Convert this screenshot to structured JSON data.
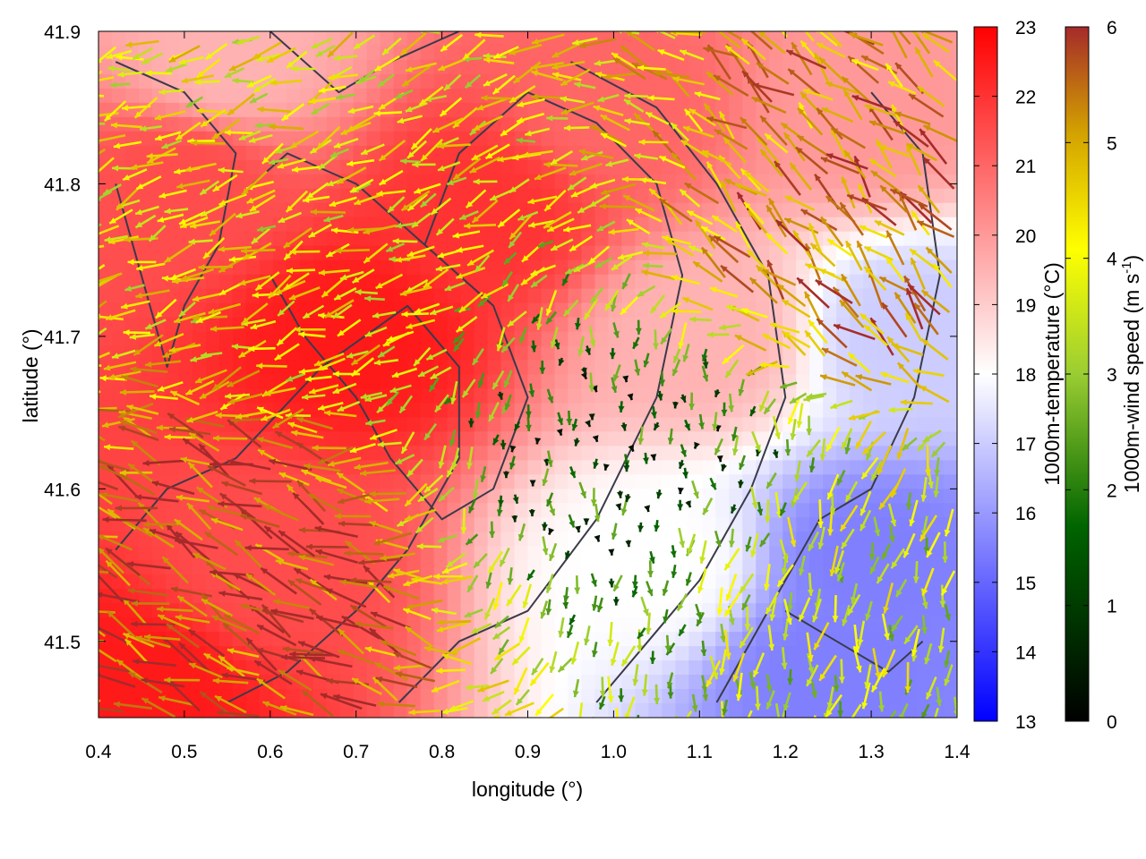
{
  "chart_data": {
    "type": "heatmap",
    "title": "",
    "xlabel": "longitude (°)",
    "ylabel": "latitude (°)",
    "xlim": [
      0.4,
      1.4
    ],
    "ylim": [
      41.45,
      41.9
    ],
    "x_ticks": [
      "0.4",
      "0.5",
      "0.6",
      "0.7",
      "0.8",
      "0.9",
      "1.0",
      "1.1",
      "1.2",
      "1.3",
      "1.4"
    ],
    "y_ticks": [
      "41.5",
      "41.6",
      "41.7",
      "41.8",
      "41.9"
    ],
    "temperature_colorbar": {
      "label": "1000m-temperature (°C)",
      "range": [
        13,
        23
      ],
      "ticks": [
        "13",
        "14",
        "15",
        "16",
        "17",
        "18",
        "19",
        "20",
        "21",
        "22",
        "23"
      ],
      "colors": [
        "#0000ff",
        "#ffffff",
        "#ff0000"
      ]
    },
    "wind_colorbar": {
      "label_main": "1000m-wind speed (m s",
      "label_sup": "-1",
      "label_end": ")",
      "range": [
        0,
        6
      ],
      "ticks": [
        "0",
        "1",
        "2",
        "3",
        "4",
        "5",
        "6"
      ],
      "colors": [
        "#000000",
        "#006400",
        "#9acd32",
        "#ffff00",
        "#d2a000",
        "#a52a2a"
      ]
    },
    "temperature_field": {
      "description_regions": [
        {
          "lon": 0.7,
          "lat": 41.7,
          "temp": 22.5
        },
        {
          "lon": 0.85,
          "lat": 41.78,
          "temp": 22.0
        },
        {
          "lon": 0.5,
          "lat": 41.8,
          "temp": 21.5
        },
        {
          "lon": 0.6,
          "lat": 41.55,
          "temp": 21.5
        },
        {
          "lon": 0.45,
          "lat": 41.47,
          "temp": 22.5
        },
        {
          "lon": 1.0,
          "lat": 41.85,
          "temp": 21.0
        },
        {
          "lon": 1.1,
          "lat": 41.7,
          "temp": 19.5
        },
        {
          "lon": 1.05,
          "lat": 41.55,
          "temp": 18.0
        },
        {
          "lon": 1.3,
          "lat": 41.55,
          "temp": 15.5
        },
        {
          "lon": 1.25,
          "lat": 41.48,
          "temp": 15.5
        },
        {
          "lon": 1.35,
          "lat": 41.7,
          "temp": 17.0
        },
        {
          "lon": 1.3,
          "lat": 41.85,
          "temp": 20.0
        },
        {
          "lon": 0.55,
          "lat": 41.88,
          "temp": 19.5
        }
      ]
    },
    "wind_field": {
      "regimes": [
        {
          "region": "southwest",
          "lon": [
            0.4,
            0.75
          ],
          "lat": [
            41.45,
            41.62
          ],
          "direction_deg": 155,
          "speed": 5.5
        },
        {
          "region": "west-central",
          "lon": [
            0.4,
            0.9
          ],
          "lat": [
            41.62,
            41.9
          ],
          "direction_deg": 200,
          "speed": 3.5
        },
        {
          "region": "center-east",
          "lon": [
            0.9,
            1.15
          ],
          "lat": [
            41.5,
            41.75
          ],
          "direction_deg": 270,
          "speed": 1.0
        },
        {
          "region": "southeast",
          "lon": [
            1.15,
            1.4
          ],
          "lat": [
            41.45,
            41.65
          ],
          "direction_deg": 260,
          "speed": 3.0
        },
        {
          "region": "east",
          "lon": [
            1.2,
            1.4
          ],
          "lat": [
            41.65,
            41.85
          ],
          "direction_deg": 135,
          "speed": 5.0
        }
      ]
    }
  }
}
